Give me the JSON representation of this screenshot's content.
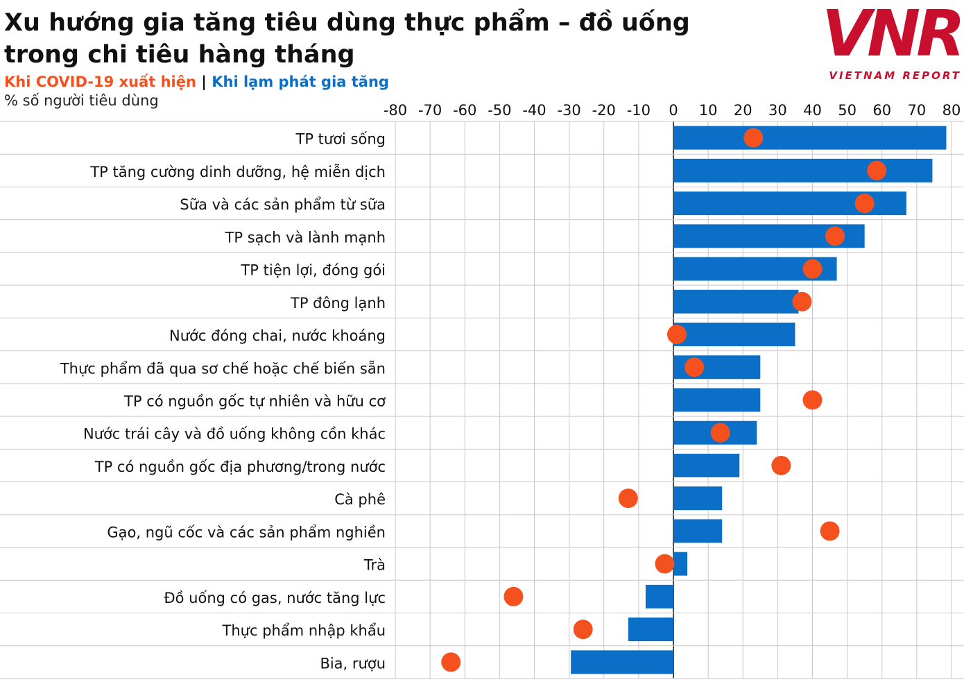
{
  "chart_data": {
    "type": "bar",
    "orientation": "horizontal",
    "title": "Xu hướng gia tăng tiêu dùng thực phẩm – đồ uống trong chi tiêu hàng tháng",
    "unit_label": "% số người tiêu dùng",
    "legend_separator": "|",
    "logo": {
      "mark": "VNR",
      "text": "VIETNAM REPORT"
    },
    "categories": [
      "TP tươi sống",
      "TP tăng cường dinh dưỡng, hệ miễn dịch",
      "Sữa và các sản phẩm từ sữa",
      "TP sạch và lành mạnh",
      "TP tiện lợi, đóng gói",
      "TP đông lạnh",
      "Nước đóng chai, nước khoáng",
      "Thực phẩm đã qua sơ chế hoặc chế biến sẵn",
      "TP có nguồn gốc tự nhiên và hữu cơ",
      "Nước trái cây và đồ uống không cồn khác",
      "TP có nguồn gốc địa phương/trong nước",
      "Cà phê",
      "Gạo, ngũ cốc và các sản phẩm nghiền",
      "Trà",
      "Đồ uống có gas, nước tăng lực",
      "Thực phẩm nhập khẩu",
      "Bia, rượu"
    ],
    "series": [
      {
        "name": "Khi COVID-19 xuất hiện",
        "color": "#f4511e",
        "mark": "dot",
        "values": [
          23,
          58.5,
          55,
          46.5,
          40,
          37,
          1,
          6,
          40,
          13.5,
          31,
          -13,
          45,
          -2.5,
          -46,
          -26,
          -64
        ]
      },
      {
        "name": "Khi lạm phát gia tăng",
        "color": "#0b6fc8",
        "mark": "bar",
        "values": [
          78.5,
          74.5,
          67,
          55,
          47,
          36,
          35,
          25,
          25,
          24,
          19,
          14,
          14,
          4,
          -8,
          -13,
          -29.5
        ]
      }
    ],
    "xlim": [
      -80,
      80
    ],
    "xticks": [
      -80,
      -70,
      -60,
      -50,
      -40,
      -30,
      -20,
      -10,
      0,
      10,
      20,
      30,
      40,
      50,
      60,
      70,
      80
    ],
    "grid": true
  }
}
